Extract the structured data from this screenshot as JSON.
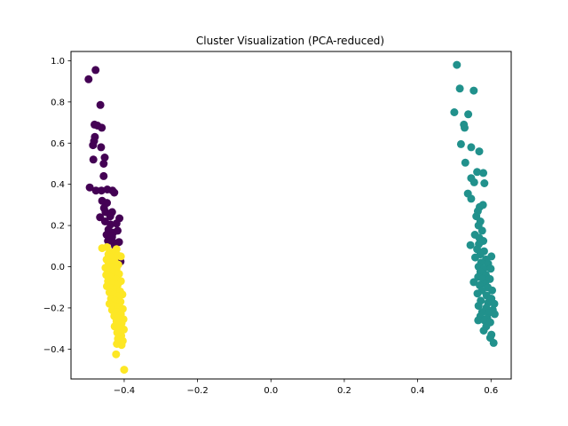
{
  "chart_data": {
    "type": "scatter",
    "title": "Cluster Visualization (PCA-reduced)",
    "xlabel": "",
    "ylabel": "",
    "xlim": [
      -0.545,
      0.655
    ],
    "ylim": [
      -0.545,
      1.045
    ],
    "xticks": [
      -0.4,
      -0.2,
      0.0,
      0.2,
      0.4,
      0.6
    ],
    "xtick_labels": [
      "−0.4",
      "−0.2",
      "0.0",
      "0.2",
      "0.4",
      "0.6"
    ],
    "yticks": [
      -0.4,
      -0.2,
      0.0,
      0.2,
      0.4,
      0.6,
      0.8,
      1.0
    ],
    "ytick_labels": [
      "−0.4",
      "−0.2",
      "0.0",
      "0.2",
      "0.4",
      "0.6",
      "0.8",
      "1.0"
    ],
    "grid": false,
    "series": [
      {
        "color": "#440154",
        "points": [
          [
            -0.478,
            0.955
          ],
          [
            -0.497,
            0.91
          ],
          [
            -0.465,
            0.785
          ],
          [
            -0.481,
            0.69
          ],
          [
            -0.473,
            0.685
          ],
          [
            -0.461,
            0.675
          ],
          [
            -0.48,
            0.63
          ],
          [
            -0.482,
            0.61
          ],
          [
            -0.485,
            0.59
          ],
          [
            -0.463,
            0.58
          ],
          [
            -0.484,
            0.52
          ],
          [
            -0.453,
            0.53
          ],
          [
            -0.456,
            0.5
          ],
          [
            -0.456,
            0.44
          ],
          [
            -0.494,
            0.385
          ],
          [
            -0.477,
            0.37
          ],
          [
            -0.462,
            0.37
          ],
          [
            -0.446,
            0.375
          ],
          [
            -0.432,
            0.37
          ],
          [
            -0.427,
            0.36
          ],
          [
            -0.46,
            0.32
          ],
          [
            -0.447,
            0.31
          ],
          [
            -0.455,
            0.285
          ],
          [
            -0.451,
            0.265
          ],
          [
            -0.433,
            0.265
          ],
          [
            -0.438,
            0.245
          ],
          [
            -0.413,
            0.235
          ],
          [
            -0.466,
            0.24
          ],
          [
            -0.452,
            0.22
          ],
          [
            -0.437,
            0.205
          ],
          [
            -0.421,
            0.21
          ],
          [
            -0.443,
            0.18
          ],
          [
            -0.43,
            0.165
          ],
          [
            -0.418,
            0.175
          ],
          [
            -0.448,
            0.155
          ],
          [
            -0.433,
            0.145
          ],
          [
            -0.444,
            0.125
          ],
          [
            -0.428,
            0.115
          ],
          [
            -0.414,
            0.12
          ],
          [
            -0.425,
            0.1
          ],
          [
            -0.41,
            0.025
          ]
        ]
      },
      {
        "color": "#21918c",
        "points": [
          [
            0.507,
            0.98
          ],
          [
            0.515,
            0.865
          ],
          [
            0.553,
            0.855
          ],
          [
            0.5,
            0.75
          ],
          [
            0.538,
            0.74
          ],
          [
            0.526,
            0.69
          ],
          [
            0.528,
            0.675
          ],
          [
            0.518,
            0.595
          ],
          [
            0.546,
            0.58
          ],
          [
            0.568,
            0.56
          ],
          [
            0.53,
            0.505
          ],
          [
            0.562,
            0.46
          ],
          [
            0.579,
            0.455
          ],
          [
            0.546,
            0.43
          ],
          [
            0.554,
            0.41
          ],
          [
            0.582,
            0.405
          ],
          [
            0.537,
            0.355
          ],
          [
            0.546,
            0.33
          ],
          [
            0.578,
            0.3
          ],
          [
            0.569,
            0.29
          ],
          [
            0.564,
            0.27
          ],
          [
            0.56,
            0.245
          ],
          [
            0.571,
            0.22
          ],
          [
            0.566,
            0.2
          ],
          [
            0.576,
            0.175
          ],
          [
            0.556,
            0.155
          ],
          [
            0.568,
            0.14
          ],
          [
            0.579,
            0.125
          ],
          [
            0.544,
            0.105
          ],
          [
            0.567,
            0.11
          ],
          [
            0.562,
            0.085
          ],
          [
            0.581,
            0.075
          ],
          [
            0.571,
            0.06
          ],
          [
            0.601,
            0.05
          ],
          [
            0.557,
            0.045
          ],
          [
            0.586,
            0.035
          ],
          [
            0.573,
            0.02
          ],
          [
            0.592,
            0.015
          ],
          [
            0.566,
            0.0
          ],
          [
            0.58,
            -0.01
          ],
          [
            0.599,
            -0.01
          ],
          [
            0.571,
            -0.025
          ],
          [
            0.586,
            -0.04
          ],
          [
            0.565,
            -0.05
          ],
          [
            0.578,
            -0.06
          ],
          [
            0.597,
            -0.06
          ],
          [
            0.553,
            -0.075
          ],
          [
            0.584,
            -0.08
          ],
          [
            0.569,
            -0.09
          ],
          [
            0.591,
            -0.1
          ],
          [
            0.576,
            -0.115
          ],
          [
            0.603,
            -0.115
          ],
          [
            0.563,
            -0.13
          ],
          [
            0.588,
            -0.14
          ],
          [
            0.601,
            -0.155
          ],
          [
            0.572,
            -0.165
          ],
          [
            0.592,
            -0.175
          ],
          [
            0.609,
            -0.18
          ],
          [
            0.566,
            -0.19
          ],
          [
            0.587,
            -0.2
          ],
          [
            0.605,
            -0.21
          ],
          [
            0.576,
            -0.22
          ],
          [
            0.593,
            -0.225
          ],
          [
            0.61,
            -0.23
          ],
          [
            0.571,
            -0.24
          ],
          [
            0.59,
            -0.25
          ],
          [
            0.565,
            -0.26
          ],
          [
            0.582,
            -0.26
          ],
          [
            0.598,
            -0.27
          ],
          [
            0.587,
            -0.29
          ],
          [
            0.58,
            -0.31
          ],
          [
            0.601,
            -0.33
          ],
          [
            0.598,
            -0.345
          ],
          [
            0.607,
            -0.37
          ]
        ]
      },
      {
        "color": "#fde725",
        "points": [
          [
            -0.447,
            0.095
          ],
          [
            -0.46,
            0.09
          ],
          [
            -0.421,
            0.085
          ],
          [
            -0.432,
            0.07
          ],
          [
            -0.443,
            0.06
          ],
          [
            -0.417,
            0.055
          ],
          [
            -0.436,
            0.045
          ],
          [
            -0.409,
            0.05
          ],
          [
            -0.448,
            0.035
          ],
          [
            -0.426,
            0.025
          ],
          [
            -0.442,
            0.015
          ],
          [
            -0.416,
            0.01
          ],
          [
            -0.435,
            0.0
          ],
          [
            -0.451,
            -0.005
          ],
          [
            -0.421,
            -0.01
          ],
          [
            -0.442,
            -0.02
          ],
          [
            -0.43,
            -0.03
          ],
          [
            -0.414,
            -0.035
          ],
          [
            -0.449,
            -0.04
          ],
          [
            -0.437,
            -0.05
          ],
          [
            -0.423,
            -0.06
          ],
          [
            -0.444,
            -0.07
          ],
          [
            -0.409,
            -0.07
          ],
          [
            -0.432,
            -0.08
          ],
          [
            -0.418,
            -0.09
          ],
          [
            -0.447,
            -0.095
          ],
          [
            -0.437,
            -0.105
          ],
          [
            -0.425,
            -0.11
          ],
          [
            -0.411,
            -0.12
          ],
          [
            -0.44,
            -0.125
          ],
          [
            -0.428,
            -0.135
          ],
          [
            -0.405,
            -0.135
          ],
          [
            -0.418,
            -0.145
          ],
          [
            -0.436,
            -0.155
          ],
          [
            -0.424,
            -0.165
          ],
          [
            -0.41,
            -0.17
          ],
          [
            -0.44,
            -0.18
          ],
          [
            -0.429,
            -0.19
          ],
          [
            -0.416,
            -0.195
          ],
          [
            -0.404,
            -0.205
          ],
          [
            -0.433,
            -0.21
          ],
          [
            -0.421,
            -0.22
          ],
          [
            -0.409,
            -0.23
          ],
          [
            -0.427,
            -0.24
          ],
          [
            -0.414,
            -0.25
          ],
          [
            -0.402,
            -0.255
          ],
          [
            -0.421,
            -0.265
          ],
          [
            -0.407,
            -0.275
          ],
          [
            -0.426,
            -0.29
          ],
          [
            -0.413,
            -0.3
          ],
          [
            -0.401,
            -0.305
          ],
          [
            -0.419,
            -0.32
          ],
          [
            -0.408,
            -0.335
          ],
          [
            -0.417,
            -0.35
          ],
          [
            -0.404,
            -0.36
          ],
          [
            -0.42,
            -0.375
          ],
          [
            -0.407,
            -0.38
          ],
          [
            -0.422,
            -0.425
          ],
          [
            -0.4,
            -0.5
          ]
        ]
      }
    ]
  }
}
